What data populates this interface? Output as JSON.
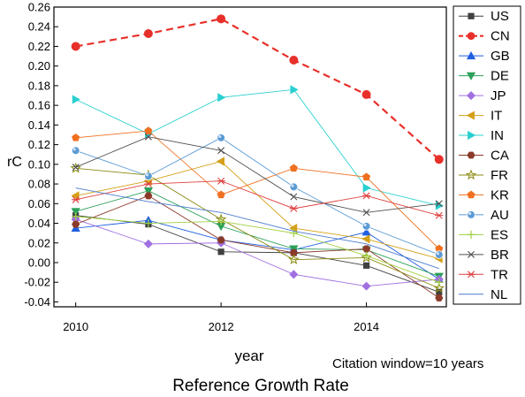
{
  "chart_data": {
    "type": "line",
    "title": "Reference Growth Rate",
    "xlabel": "year",
    "ylabel": "rC",
    "annotation": "Citation window=10 years",
    "x": [
      2010,
      2011,
      2012,
      2013,
      2014,
      2015
    ],
    "xlim": [
      2009.7,
      2015.1
    ],
    "ylim": [
      -0.045,
      0.26
    ],
    "x_ticks": [
      "2010",
      "2012",
      "2014"
    ],
    "y_ticks": [
      "-0.04",
      "-0.02",
      "0.00",
      "0.02",
      "0.04",
      "0.06",
      "0.08",
      "0.10",
      "0.12",
      "0.14",
      "0.16",
      "0.18",
      "0.20",
      "0.22",
      "0.24",
      "0.26"
    ],
    "grid": false,
    "legend_position": "right",
    "series": [
      {
        "name": "US",
        "color": "#404040",
        "marker": "square",
        "dashed": false,
        "values": [
          0.048,
          0.039,
          0.011,
          0.01,
          -0.003,
          -0.03
        ]
      },
      {
        "name": "CN",
        "color": "#e8302a",
        "marker": "circle",
        "dashed": true,
        "values": [
          0.22,
          0.233,
          0.248,
          0.206,
          0.171,
          0.105
        ]
      },
      {
        "name": "GB",
        "color": "#1f5fe0",
        "marker": "triangle-up",
        "dashed": false,
        "values": [
          0.035,
          0.043,
          0.023,
          0.013,
          0.031,
          -0.017
        ]
      },
      {
        "name": "DE",
        "color": "#2ca05a",
        "marker": "triangle-down",
        "dashed": false,
        "values": [
          0.052,
          0.073,
          0.037,
          0.014,
          0.013,
          -0.014
        ]
      },
      {
        "name": "JP",
        "color": "#a070e0",
        "marker": "diamond",
        "dashed": false,
        "values": [
          0.044,
          0.019,
          0.02,
          -0.012,
          -0.024,
          -0.017
        ]
      },
      {
        "name": "IT",
        "color": "#d4a017",
        "marker": "triangle-left",
        "dashed": false,
        "values": [
          0.068,
          0.083,
          0.103,
          0.035,
          0.024,
          0.004
        ]
      },
      {
        "name": "IN",
        "color": "#2ad0d0",
        "marker": "triangle-right",
        "dashed": false,
        "values": [
          0.166,
          0.131,
          0.168,
          0.176,
          0.076,
          0.058
        ]
      },
      {
        "name": "CA",
        "color": "#8b3a2a",
        "marker": "hexagon",
        "dashed": false,
        "values": [
          0.039,
          0.068,
          0.023,
          0.01,
          0.014,
          -0.036
        ]
      },
      {
        "name": "FR",
        "color": "#8a8a10",
        "marker": "star",
        "dashed": false,
        "values": [
          0.096,
          0.089,
          0.044,
          0.003,
          0.005,
          -0.026
        ]
      },
      {
        "name": "KR",
        "color": "#f07020",
        "marker": "pentagon",
        "dashed": false,
        "values": [
          0.127,
          0.134,
          0.069,
          0.096,
          0.087,
          0.014
        ]
      },
      {
        "name": "AU",
        "color": "#5b9bd5",
        "marker": "sphere",
        "dashed": false,
        "values": [
          0.114,
          0.088,
          0.127,
          0.077,
          0.037,
          0.008
        ]
      },
      {
        "name": "ES",
        "color": "#a0d040",
        "marker": "plus",
        "dashed": false,
        "values": [
          0.047,
          0.04,
          0.042,
          0.03,
          0.007,
          -0.02
        ]
      },
      {
        "name": "BR",
        "color": "#505050",
        "marker": "x",
        "dashed": false,
        "values": [
          0.097,
          0.128,
          0.114,
          0.067,
          0.051,
          0.06
        ]
      },
      {
        "name": "TR",
        "color": "#e04040",
        "marker": "asterisk",
        "dashed": false,
        "values": [
          0.064,
          0.08,
          0.083,
          0.055,
          0.068,
          0.048
        ]
      },
      {
        "name": "NL",
        "color": "#4a7bd0",
        "marker": "none",
        "dashed": false,
        "values": [
          0.076,
          0.062,
          0.051,
          0.032,
          0.019,
          -0.006
        ]
      }
    ]
  }
}
